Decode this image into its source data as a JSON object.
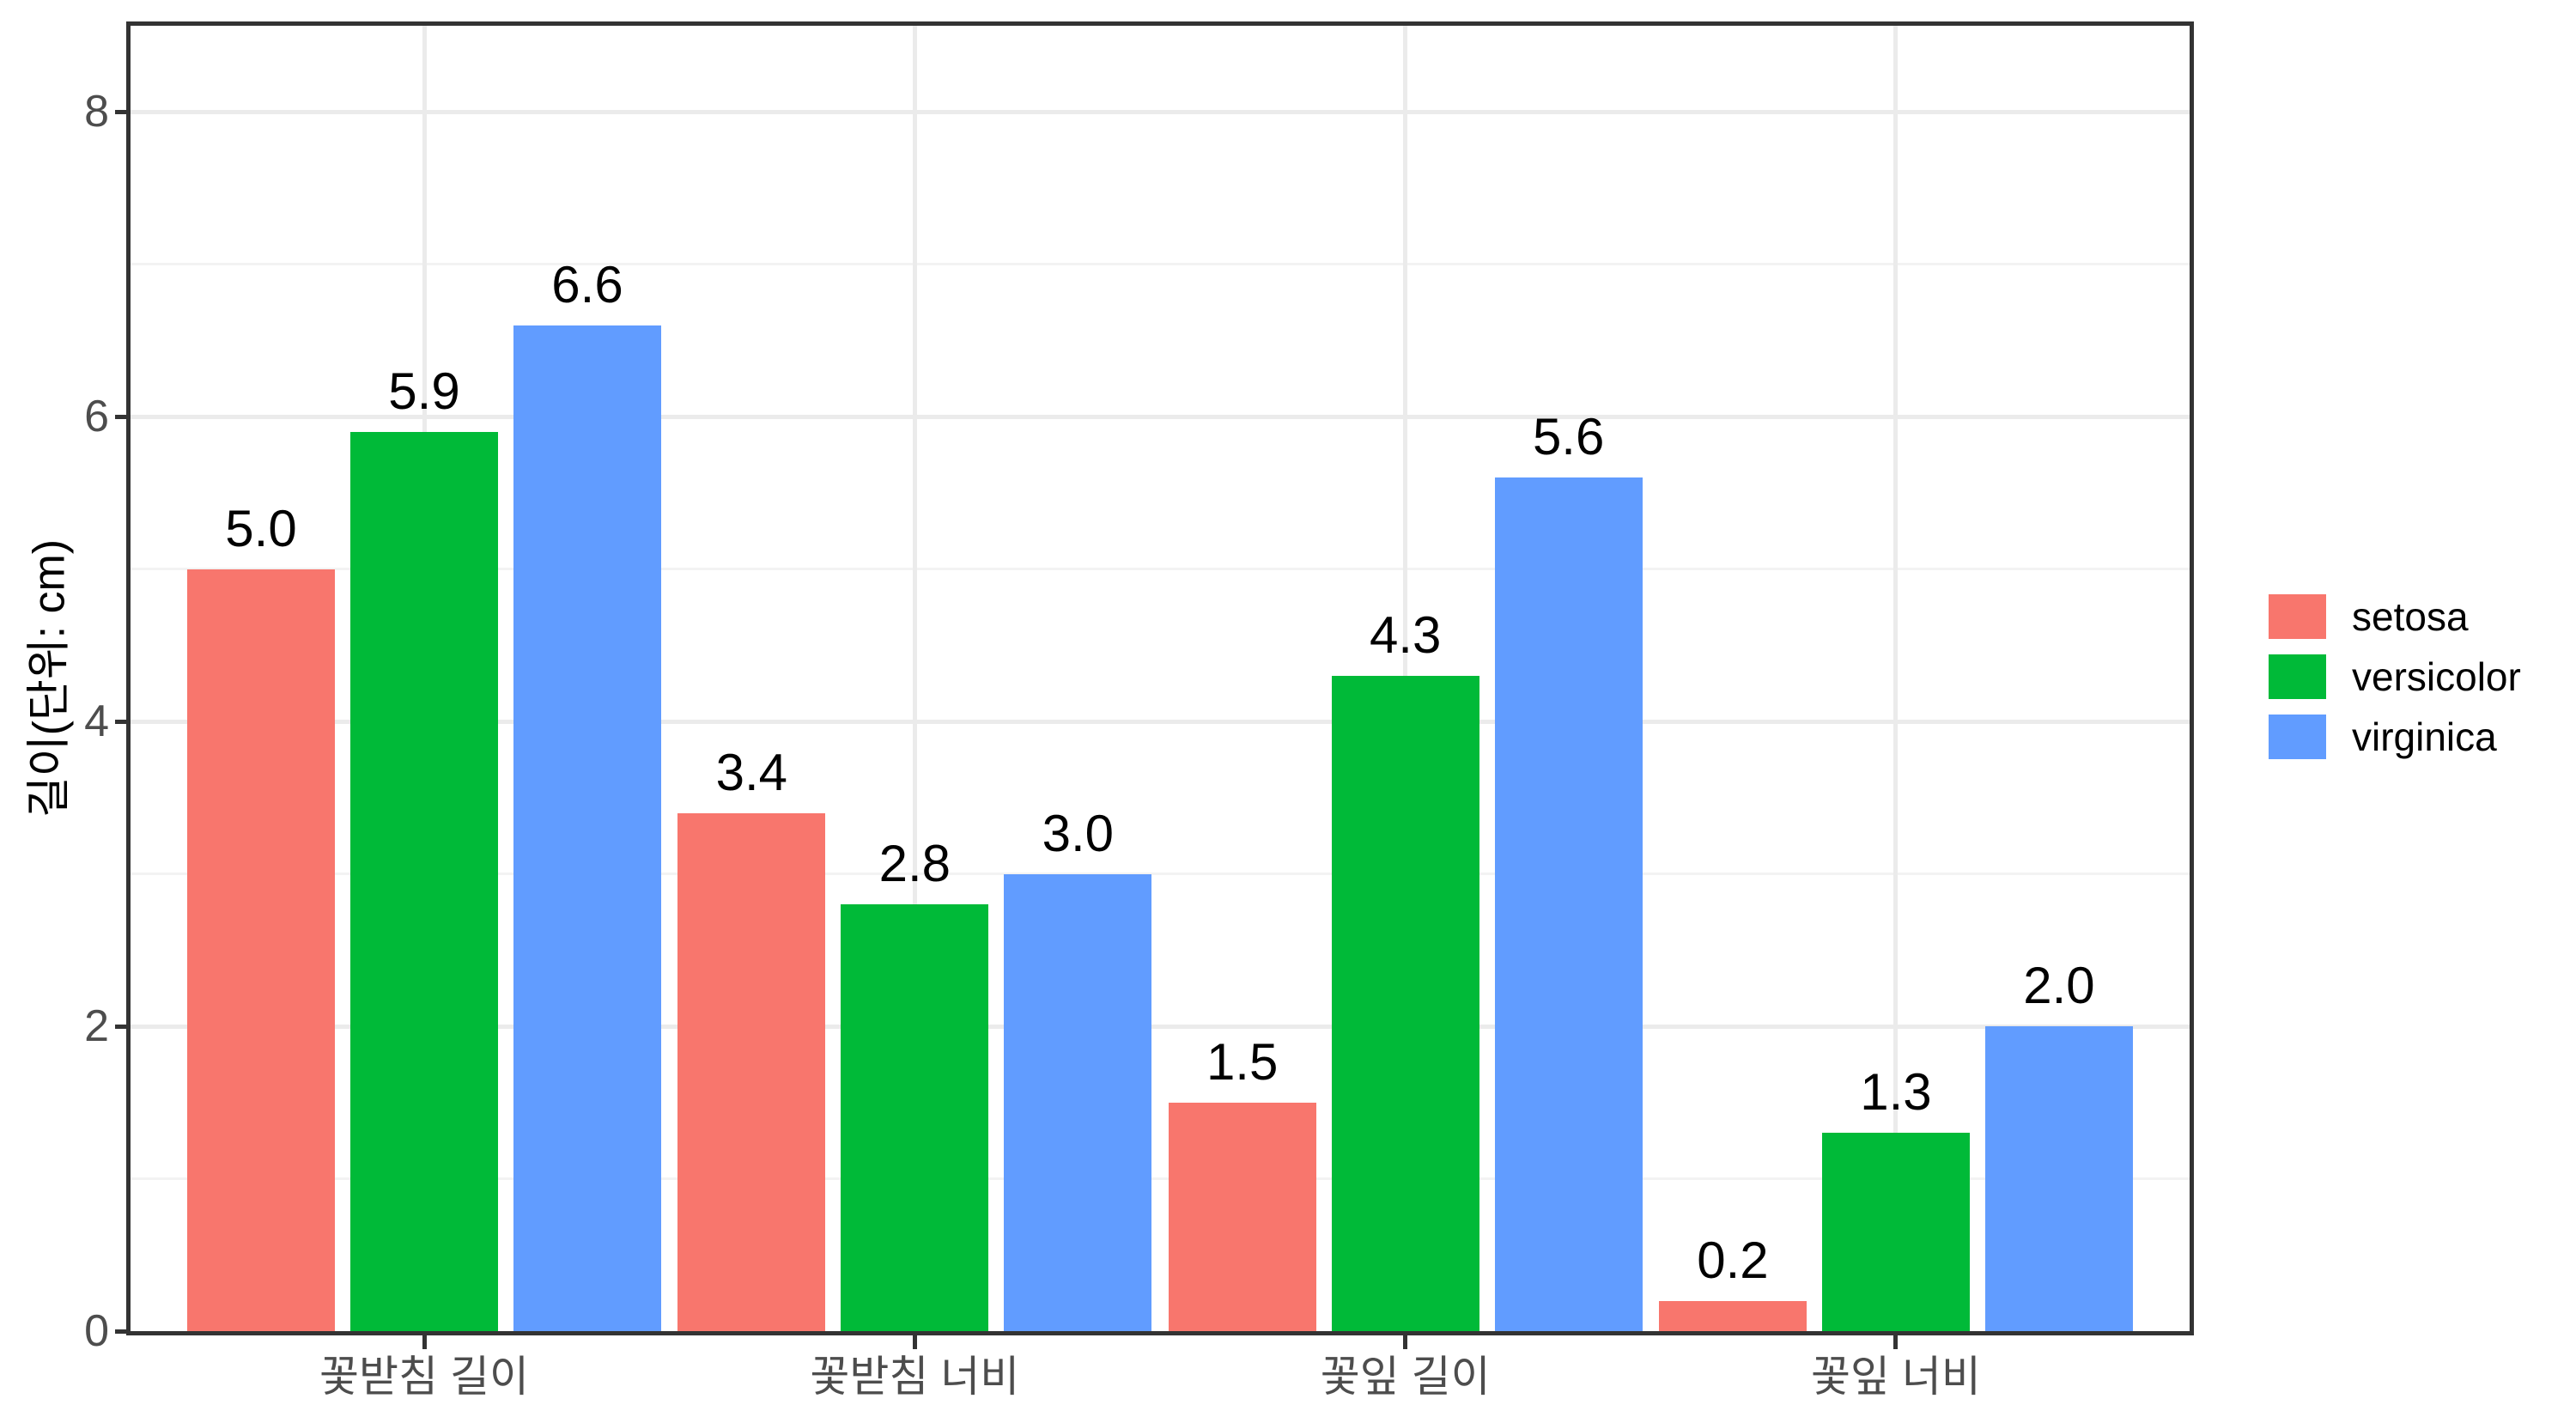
{
  "figure": {
    "background": "#FFFFFF"
  },
  "axes": {
    "y_title": "길이(단위: cm)",
    "y_tick_labels": [
      "0",
      "2",
      "4",
      "6",
      "8"
    ],
    "x_tick_labels": [
      "꽃받침 길이",
      "꽃받침 너비",
      "꽃잎 길이",
      "꽃잎 너비"
    ]
  },
  "legend": {
    "position": "right",
    "items": [
      {
        "label": "setosa",
        "swatch_color": "#F8766D"
      },
      {
        "label": "versicolor",
        "swatch_color": "#00BA38"
      },
      {
        "label": "virginica",
        "swatch_color": "#619CFF"
      }
    ]
  },
  "chart_data": {
    "type": "bar",
    "title": "",
    "categories": [
      "꽃받침 길이",
      "꽃받침 너비",
      "꽃잎 길이",
      "꽃잎 너비"
    ],
    "series": [
      {
        "name": "setosa",
        "color": "#F8766D",
        "values": [
          5.0,
          3.4,
          1.5,
          0.2
        ]
      },
      {
        "name": "versicolor",
        "color": "#00BA38",
        "values": [
          5.9,
          2.8,
          4.3,
          1.3
        ]
      },
      {
        "name": "virginica",
        "color": "#619CFF",
        "values": [
          6.6,
          3.0,
          5.6,
          2.0
        ]
      }
    ],
    "xlabel": "",
    "ylabel": "길이(단위: cm)",
    "y_ticks": [
      0,
      2,
      4,
      6,
      8
    ],
    "ylim": [
      0,
      8.56
    ],
    "value_labels": true,
    "value_label_decimals": 1,
    "legend_position": "right",
    "grid": {
      "horizontal_major_at": [
        2,
        4,
        6,
        8
      ],
      "horizontal_minor_at": [
        1,
        3,
        5,
        7
      ],
      "vertical_major": "category-centers"
    },
    "style_colors": {
      "grid_major": "#EBEBEB",
      "grid_minor": "#F3F3F3",
      "panel_border": "#333333",
      "tick_text": "#4D4D4D",
      "value_label_text": "#000000",
      "axis_title_text": "#000000"
    }
  }
}
